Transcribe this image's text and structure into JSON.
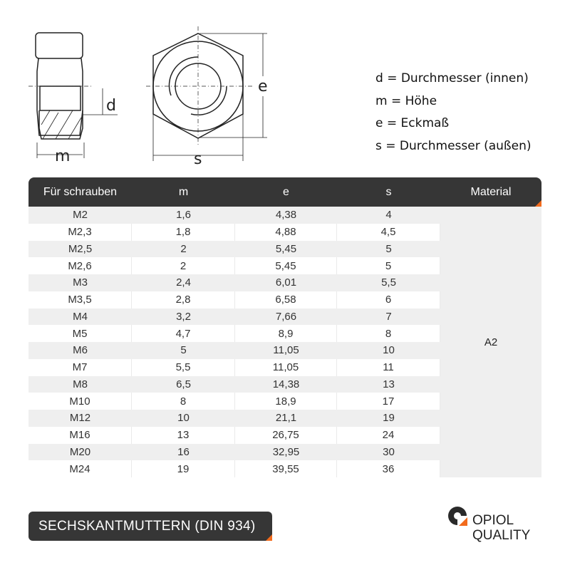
{
  "drawing": {
    "label_d": "d",
    "label_m": "m",
    "label_e": "e",
    "label_s": "s"
  },
  "legend": [
    "d = Durchmesser (innen)",
    "m = Höhe",
    "e = Eckmaß",
    "s = Durchmesser (außen)"
  ],
  "table": {
    "headers": [
      "Für schrauben",
      "m",
      "e",
      "s",
      "Material"
    ],
    "rows": [
      [
        "M2",
        "1,6",
        "4,38",
        "4"
      ],
      [
        "M2,3",
        "1,8",
        "4,88",
        "4,5"
      ],
      [
        "M2,5",
        "2",
        "5,45",
        "5"
      ],
      [
        "M2,6",
        "2",
        "5,45",
        "5"
      ],
      [
        "M3",
        "2,4",
        "6,01",
        "5,5"
      ],
      [
        "M3,5",
        "2,8",
        "6,58",
        "6"
      ],
      [
        "M4",
        "3,2",
        "7,66",
        "7"
      ],
      [
        "M5",
        "4,7",
        "8,9",
        "8"
      ],
      [
        "M6",
        "5",
        "11,05",
        "10"
      ],
      [
        "M7",
        "5,5",
        "11,05",
        "11"
      ],
      [
        "M8",
        "6,5",
        "14,38",
        "13"
      ],
      [
        "M10",
        "8",
        "18,9",
        "17"
      ],
      [
        "M12",
        "10",
        "21,1",
        "19"
      ],
      [
        "M16",
        "13",
        "26,75",
        "24"
      ],
      [
        "M20",
        "16",
        "32,95",
        "30"
      ],
      [
        "M24",
        "19",
        "39,55",
        "36"
      ]
    ],
    "material": "A2"
  },
  "title_badge": "SECHSKANTMUTTERN (DIN 934)",
  "logo": {
    "line1": "OPIOL",
    "line2": "QUALITY"
  },
  "colors": {
    "dark": "#363636",
    "accent": "#f26b1d",
    "row_grey": "#efefef"
  }
}
